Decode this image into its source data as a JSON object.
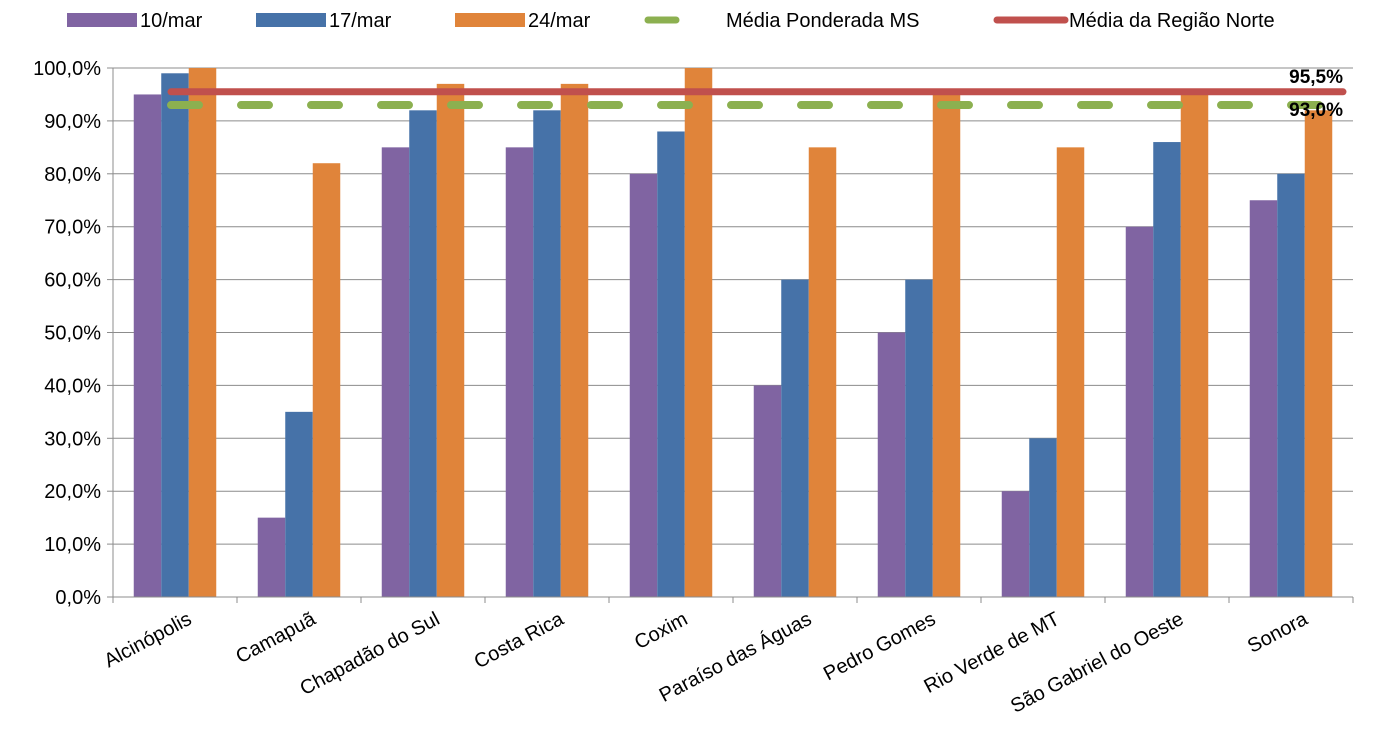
{
  "chart_data": {
    "type": "bar",
    "title": "",
    "xlabel": "",
    "ylabel": "",
    "ylim": [
      0,
      100
    ],
    "y_tick_values": [
      0,
      10,
      20,
      30,
      40,
      50,
      60,
      70,
      80,
      90,
      100
    ],
    "y_tick_labels": [
      "0,0%",
      "10,0%",
      "20,0%",
      "30,0%",
      "40,0%",
      "50,0%",
      "60,0%",
      "70,0%",
      "80,0%",
      "90,0%",
      "100,0%"
    ],
    "grid": true,
    "legend_position": "top",
    "categories": [
      "Alcinópolis",
      "Camapuã",
      "Chapadão do Sul",
      "Costa Rica",
      "Coxim",
      "Paraíso das Águas",
      "Pedro Gomes",
      "Rio Verde de MT",
      "São Gabriel do Oeste",
      "Sonora"
    ],
    "series": [
      {
        "name": "10/mar",
        "color": "#8064A2",
        "values": [
          95,
          15,
          85,
          85,
          80,
          40,
          50,
          20,
          70,
          75
        ]
      },
      {
        "name": "17/mar",
        "color": "#4672A8",
        "values": [
          99,
          35,
          92,
          92,
          88,
          60,
          60,
          30,
          86,
          80
        ]
      },
      {
        "name": "24/mar",
        "color": "#E0843A",
        "values": [
          100,
          82,
          97,
          97,
          100,
          85,
          96,
          85,
          96,
          92
        ]
      }
    ],
    "reference_lines": [
      {
        "name": "Média Ponderada MS",
        "value": 93.0,
        "label": "93,0%",
        "color": "#8CB050",
        "style": "dashed"
      },
      {
        "name": "Média da Região Norte",
        "value": 95.5,
        "label": "95,5%",
        "color": "#C0504D",
        "style": "solid"
      }
    ]
  }
}
